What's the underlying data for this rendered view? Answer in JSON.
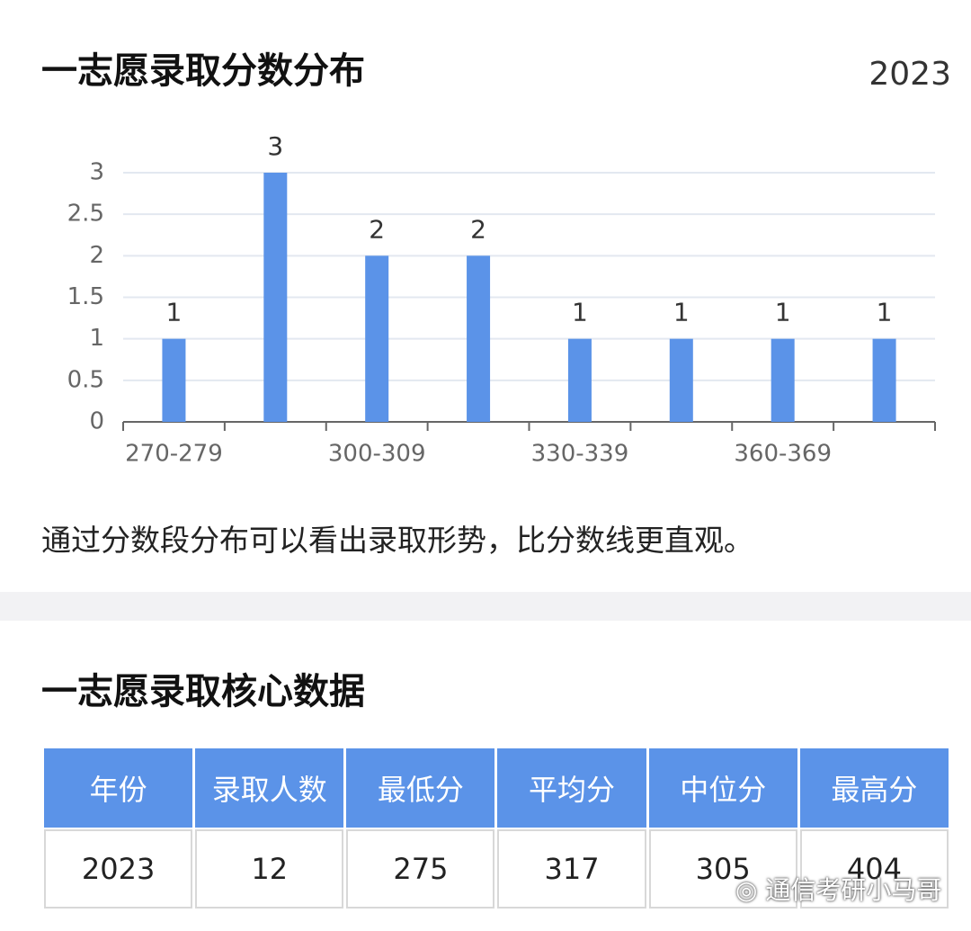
{
  "header": {
    "title": "一志愿录取分数分布",
    "year": "2023"
  },
  "chart_data": {
    "type": "bar",
    "categories": [
      "270-279",
      null,
      "300-309",
      null,
      "330-339",
      null,
      "360-369",
      null
    ],
    "values": [
      1,
      3,
      2,
      2,
      1,
      1,
      1,
      1
    ],
    "color": "#5b93e8",
    "ylim": [
      0,
      3
    ],
    "yticks": [
      0,
      0.5,
      1,
      1.5,
      2,
      2.5,
      3
    ],
    "grid": true,
    "data_labels": true
  },
  "caption": "通过分数段分布可以看出录取形势，比分数线更直观。",
  "table": {
    "title": "一志愿录取核心数据",
    "columns": [
      "年份",
      "录取人数",
      "最低分",
      "平均分",
      "中位分",
      "最高分"
    ],
    "rows": [
      [
        2023,
        12,
        275,
        317,
        305,
        404
      ]
    ]
  },
  "watermark": "通信考研小马哥"
}
